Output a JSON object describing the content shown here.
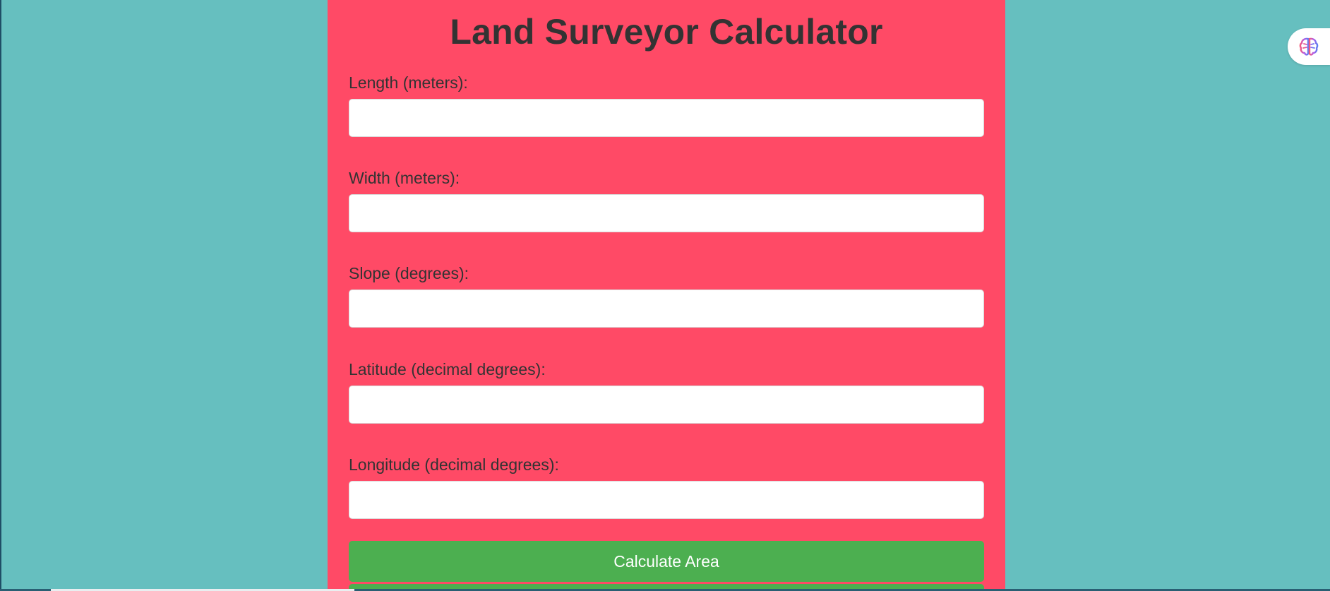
{
  "page": {
    "title": "Land Surveyor Calculator"
  },
  "form": {
    "fields": [
      {
        "label": "Length (meters):",
        "value": "",
        "placeholder": ""
      },
      {
        "label": "Width (meters):",
        "value": "",
        "placeholder": ""
      },
      {
        "label": "Slope (degrees):",
        "value": "",
        "placeholder": ""
      },
      {
        "label": "Latitude (decimal degrees):",
        "value": "",
        "placeholder": ""
      },
      {
        "label": "Longitude (decimal degrees):",
        "value": "",
        "placeholder": ""
      }
    ],
    "calculate_label": "Calculate Area"
  },
  "colors": {
    "background": "#66bfbf",
    "card": "#ff4a66",
    "button": "#4caf50",
    "text": "#333333"
  },
  "extension": {
    "icon": "brain-icon"
  }
}
